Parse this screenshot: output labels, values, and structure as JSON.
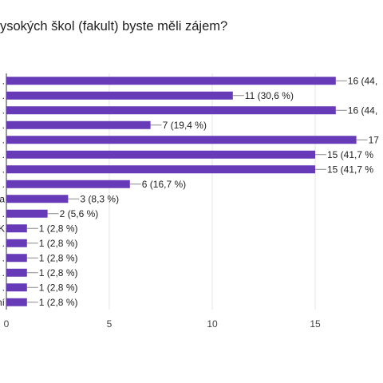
{
  "chart_data": {
    "type": "bar",
    "orientation": "horizontal",
    "title": "ysokých škol (fakult) byste měli zájem?",
    "categories": [
      ".",
      ".",
      ".",
      ".",
      ".",
      ".",
      ".",
      ".",
      "a",
      ".",
      "K",
      ".",
      ".",
      ".",
      ".",
      "ní"
    ],
    "values": [
      16,
      11,
      16,
      7,
      17,
      15,
      15,
      6,
      3,
      2,
      1,
      1,
      1,
      1,
      1,
      1
    ],
    "data_labels": [
      "16 (44,",
      "11 (30,6 %)",
      "16 (44,",
      "7 (19,4 %)",
      "17",
      "15 (41,7 %",
      "15 (41,7 %",
      "6 (16,7 %)",
      "3 (8,3 %)",
      "2 (5,6 %)",
      "1 (2,8 %)",
      "1 (2,8 %)",
      "1 (2,8 %)",
      "1 (2,8 %)",
      "1 (2,8 %)",
      "1 (2,8 %)"
    ],
    "xticks": [
      0,
      5,
      10,
      15
    ],
    "xlim": [
      0,
      18
    ],
    "grid": true,
    "bar_color": "#673ab7",
    "grid_color": "#e6e6e6"
  }
}
